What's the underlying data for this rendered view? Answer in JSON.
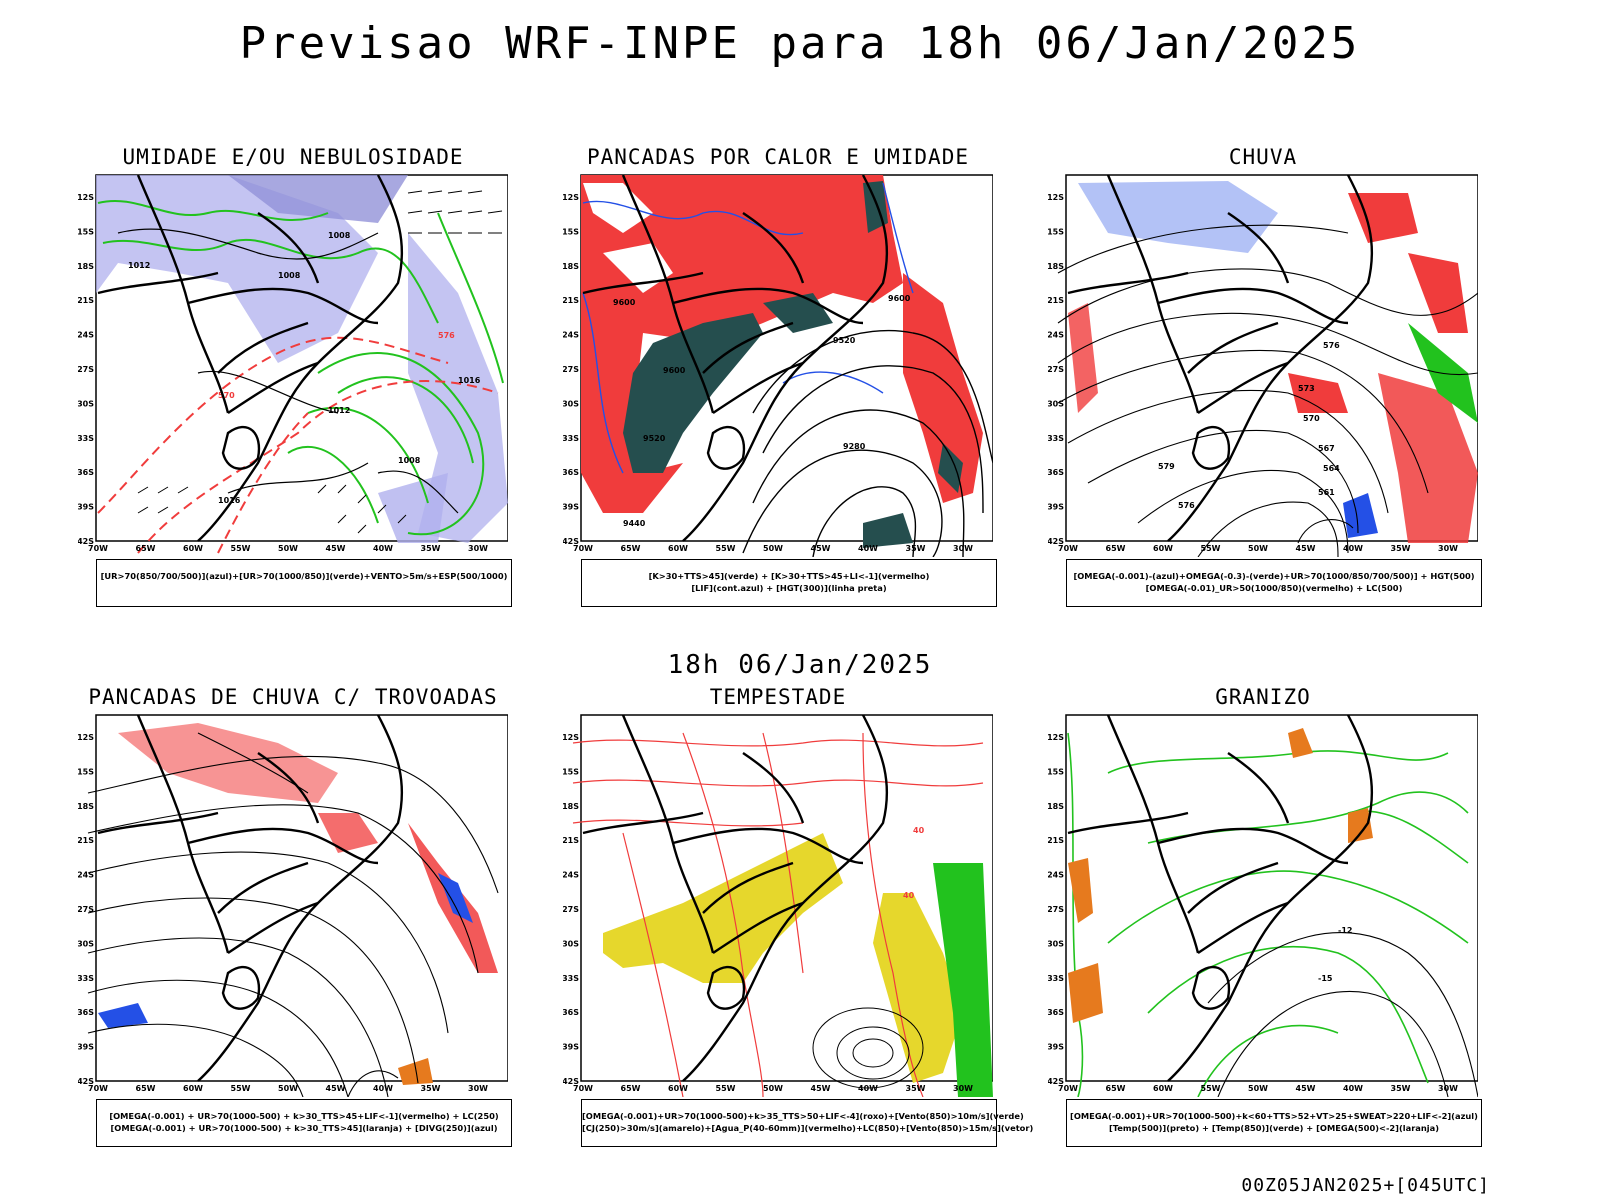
{
  "title": "Previsao WRF-INPE  para 18h 06/Jan/2025",
  "mid_title": "18h 06/Jan/2025",
  "footer": "00Z05JAN2025+[045UTC]",
  "lat_labels": [
    "12S",
    "15S",
    "18S",
    "21S",
    "24S",
    "27S",
    "30S",
    "33S",
    "36S",
    "39S",
    "42S"
  ],
  "lon_labels": [
    "70W",
    "65W",
    "60W",
    "55W",
    "50W",
    "45W",
    "40W",
    "35W",
    "30W"
  ],
  "colors": {
    "red": "#f03c3c",
    "green": "#22c21e",
    "blue": "#2450e6",
    "lavender": "#b0b0ee",
    "teal": "#254e4e",
    "yellow": "#e6d72c",
    "orange": "#e67a1e"
  },
  "panels": [
    {
      "id": "umidade",
      "title": "UMIDADE E/OU NEBULOSIDADE",
      "legend": [
        "[UR>70(850/700/500)](azul)+[UR>70(1000/850)](verde)+VENTO>5m/s+ESP(500/1000)"
      ],
      "contour_labels": [
        "1008",
        "1008",
        "1012",
        "1012",
        "1016",
        "1016",
        "1008",
        "570",
        "576"
      ]
    },
    {
      "id": "pancadas-calor",
      "title": "PANCADAS POR CALOR E UMIDADE",
      "legend": [
        "[K>30+TTS>45](verde) + [K>30+TTS>45+LI<-1](vermelho)",
        "[LIF](cont.azul) + [HGT(300)](linha preta)"
      ],
      "contour_labels": [
        "9600",
        "9600",
        "9520",
        "9520",
        "9440",
        "9280",
        "9600"
      ]
    },
    {
      "id": "chuva",
      "title": "CHUVA",
      "legend": [
        "[OMEGA(-0.001)-(azul)+OMEGA(-0.3)-(verde)+UR>70(1000/850/700/500)] + HGT(500)",
        "[OMEGA(-0.01)_UR>50(1000/850)(vermelho) + LC(500)"
      ],
      "contour_labels": [
        "576",
        "573",
        "570",
        "567",
        "564",
        "561",
        "576",
        "579"
      ]
    },
    {
      "id": "trovoadas",
      "title": "PANCADAS DE CHUVA C/ TROVOADAS",
      "legend": [
        "[OMEGA(-0.001) + UR>70(1000-500) + k>30_TTS>45+LIF<-1](vermelho) + LC(250)",
        "[OMEGA(-0.001) + UR>70(1000-500) + k>30_TTS>45](laranja) + [DIVG(250)](azul)"
      ],
      "contour_labels": []
    },
    {
      "id": "tempestade",
      "title": "TEMPESTADE",
      "legend": [
        "[OMEGA(-0.001)+UR>70(1000-500)+k>35_TTS>50+LIF<-4](roxo)+[Vento(850)>10m/s](verde)",
        "[CJ(250)>30m/s](amarelo)+[Agua_P(40-60mm)](vermelho)+LC(850)+[Vento(850)>15m/s](vetor)"
      ],
      "contour_labels": [
        "40",
        "40"
      ]
    },
    {
      "id": "granizo",
      "title": "GRANIZO",
      "legend": [
        "[OMEGA(-0.001)+UR>70(1000-500)+k<60+TTS>52+VT>25+SWEAT>220+LIF<-2](azul)",
        "[Temp(500)](preto) + [Temp(850)](verde) + [OMEGA(500)<-2](laranja)"
      ],
      "contour_labels": [
        "-12",
        "-15"
      ]
    }
  ]
}
